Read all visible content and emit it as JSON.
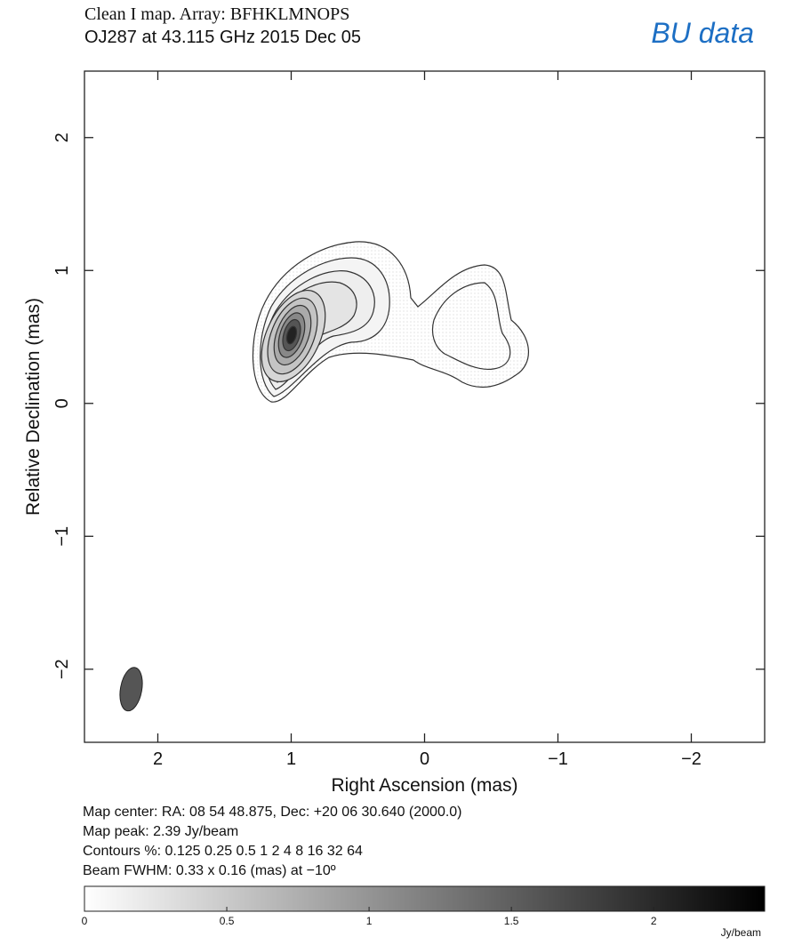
{
  "chart_data": {
    "type": "contour",
    "title": "Clean I map.  Array:  BFHKLMNOPS",
    "subtitle": "OJ287 at 43.115 GHz 2015 Dec 05",
    "annotation": "BU data",
    "xlabel": "Right Ascension  (mas)",
    "ylabel": "Relative Declination  (mas)",
    "xlim": [
      2.55,
      -2.55
    ],
    "ylim": [
      -2.55,
      2.5
    ],
    "xticks": [
      2,
      1,
      0,
      {
        "value": -1,
        "label": "−1"
      },
      {
        "value": -2,
        "label": "−2"
      }
    ],
    "yticks": [
      {
        "value": -2,
        "label": "−2"
      },
      {
        "value": -1,
        "label": "−1"
      },
      0,
      1,
      2
    ],
    "notes": [
      "Map center:  RA: 08 54 48.875,  Dec: +20 06 30.640 (2000.0)",
      "Map peak: 2.39 Jy/beam",
      "Contours %: 0.125 0.25 0.5 1 2 4 8 16 32 64",
      "Beam FWHM: 0.33 x 0.16 (mas) at −10º"
    ],
    "beam": {
      "center": [
        2.2,
        -2.15
      ],
      "major": 0.33,
      "minor": 0.16,
      "pa": -10,
      "color": "#555555"
    },
    "colorbar": {
      "lim": [
        0,
        2.39
      ],
      "ticks": [
        0,
        0.5,
        1,
        1.5,
        2
      ],
      "label": "Jy/beam"
    }
  }
}
